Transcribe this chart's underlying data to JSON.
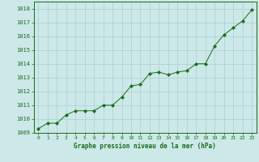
{
  "x": [
    0,
    1,
    2,
    3,
    4,
    5,
    6,
    7,
    8,
    9,
    10,
    11,
    12,
    13,
    14,
    15,
    16,
    17,
    18,
    19,
    20,
    21,
    22,
    23
  ],
  "y": [
    1009.3,
    1009.7,
    1009.7,
    1010.3,
    1010.6,
    1010.6,
    1010.6,
    1011.0,
    1011.0,
    1011.6,
    1012.4,
    1012.5,
    1013.3,
    1013.4,
    1013.2,
    1013.4,
    1013.5,
    1014.0,
    1014.0,
    1015.3,
    1016.1,
    1016.6,
    1017.1,
    1017.9
  ],
  "line_color": "#1a6b1a",
  "marker": "D",
  "marker_size": 2.2,
  "bg_color": "#cce8e8",
  "grid_color": "#aad0d0",
  "xlabel": "Graphe pression niveau de la mer (hPa)",
  "xlabel_color": "#1a6b1a",
  "tick_color": "#1a6b1a",
  "ylim": [
    1009,
    1018.5
  ],
  "yticks": [
    1009,
    1010,
    1011,
    1012,
    1013,
    1014,
    1015,
    1016,
    1017,
    1018
  ],
  "xlim": [
    -0.5,
    23.5
  ],
  "xticks": [
    0,
    1,
    2,
    3,
    4,
    5,
    6,
    7,
    8,
    9,
    10,
    11,
    12,
    13,
    14,
    15,
    16,
    17,
    18,
    19,
    20,
    21,
    22,
    23
  ]
}
